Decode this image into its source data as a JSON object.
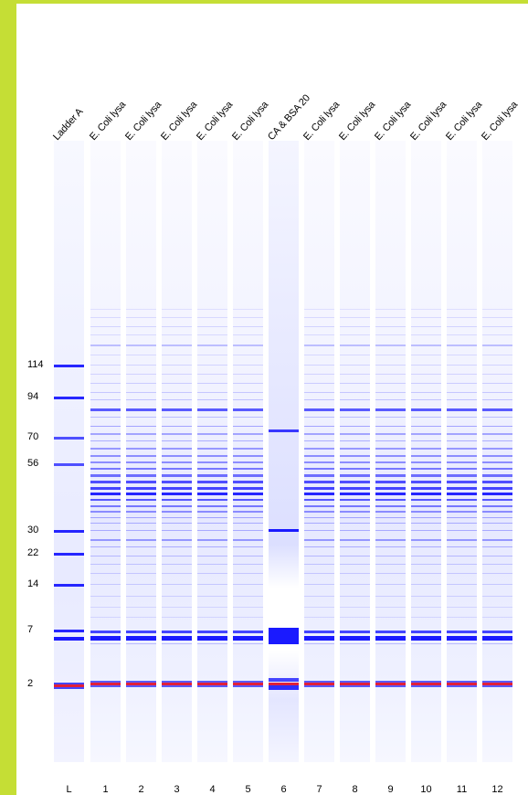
{
  "lanes": [
    {
      "id": "L",
      "header": "Ladder A",
      "type": "ladder"
    },
    {
      "id": "1",
      "header": "E. Coli lysa",
      "type": "lysate"
    },
    {
      "id": "2",
      "header": "E. Coli lysa",
      "type": "lysate"
    },
    {
      "id": "3",
      "header": "E. Coli lysa",
      "type": "lysate"
    },
    {
      "id": "4",
      "header": "E. Coli lysa",
      "type": "lysate"
    },
    {
      "id": "5",
      "header": "E. Coli lysa",
      "type": "lysate"
    },
    {
      "id": "6",
      "header": "CA & BSA 20",
      "type": "protein"
    },
    {
      "id": "7",
      "header": "E. Coli lysa",
      "type": "lysate"
    },
    {
      "id": "8",
      "header": "E. Coli lysa",
      "type": "lysate"
    },
    {
      "id": "9",
      "header": "E. Coli lysa",
      "type": "lysate"
    },
    {
      "id": "10",
      "header": "E. Coli lysa",
      "type": "lysate"
    },
    {
      "id": "11",
      "header": "E. Coli lysa",
      "type": "lysate"
    },
    {
      "id": "12",
      "header": "E. Coli lysa",
      "type": "lysate"
    }
  ],
  "ladder_markers": [
    "114",
    "94",
    "70",
    "56",
    "30",
    "22",
    "14",
    "7",
    "2"
  ],
  "colors": {
    "frame": "#c5de35",
    "band": "#1a1aff",
    "marker_red": "#e0203a",
    "lane_bg": "#f3f4ff"
  }
}
